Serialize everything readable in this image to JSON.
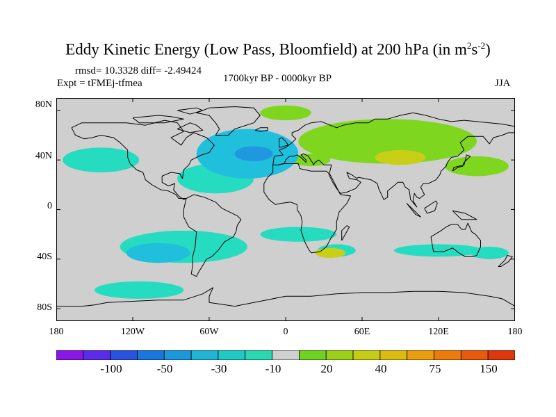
{
  "title": {
    "text": "Eddy Kinetic Energy (Low Pass, Bloomfield) at 200 hPa (in m",
    "sup1": "2",
    "mid": "s",
    "sup2": "-2",
    "end": ")"
  },
  "stats": "rmsd= 10.3328 diff= -2.49424",
  "experiment": "Expt = tFMEj-tfmea",
  "period": "1700kyr BP - 0000kyr BP",
  "season": "JJA",
  "axes": {
    "lat_labels": [
      "80N",
      "40N",
      "0",
      "40S",
      "80S"
    ],
    "lat_values": [
      80,
      40,
      0,
      -40,
      -80
    ],
    "lon_labels": [
      "180",
      "120W",
      "60W",
      "0",
      "60E",
      "120E",
      "180"
    ],
    "lon_values": [
      -180,
      -120,
      -60,
      0,
      60,
      120,
      180
    ]
  },
  "colorbar": {
    "labels": [
      "-100",
      "-50",
      "-30",
      "-10",
      "20",
      "40",
      "75",
      "150"
    ],
    "colors": [
      "#8a17e6",
      "#5a2be8",
      "#2a52e0",
      "#1876dc",
      "#1a98dc",
      "#20b4d6",
      "#21c9c4",
      "#2ad8b2",
      "#cfcfcf",
      "#6ed221",
      "#9ad018",
      "#c4cc16",
      "#dcbb10",
      "#ea9e0e",
      "#ec7a0c",
      "#e75a0c",
      "#e0360c"
    ]
  },
  "colors": {
    "background": "#cfcfcf",
    "neg_light": "#26dcc0",
    "neg_mid": "#20bfdc",
    "neg_strong": "#1f98e0",
    "pos_light": "#7ed61e",
    "pos_mid": "#a6d41a",
    "pos_strong": "#c8cf16"
  },
  "chart_data": {
    "type": "heatmap",
    "projection": "cylindrical equidistant",
    "lon_range": [
      -180,
      180
    ],
    "lat_range": [
      -90,
      90
    ],
    "field": "Eddy Kinetic Energy difference (1700kyr BP - 0000kyr BP)",
    "units": "m2 s-2",
    "anomaly_regions": [
      {
        "lon": -30,
        "lat": 45,
        "lon_radius": 40,
        "lat_radius": 20,
        "value": -30
      },
      {
        "lon": -25,
        "lat": 45,
        "lon_radius": 15,
        "lat_radius": 6,
        "value": -50
      },
      {
        "lon": -55,
        "lat": 25,
        "lon_radius": 30,
        "lat_radius": 12,
        "value": -10
      },
      {
        "lon": -145,
        "lat": 40,
        "lon_radius": 30,
        "lat_radius": 10,
        "value": -10
      },
      {
        "lon": -80,
        "lat": -30,
        "lon_radius": 50,
        "lat_radius": 13,
        "value": -10
      },
      {
        "lon": -100,
        "lat": -35,
        "lon_radius": 25,
        "lat_radius": 8,
        "value": -30
      },
      {
        "lon": -115,
        "lat": -65,
        "lon_radius": 35,
        "lat_radius": 7,
        "value": -10
      },
      {
        "lon": 10,
        "lat": -20,
        "lon_radius": 30,
        "lat_radius": 6,
        "value": -10
      },
      {
        "lon": 40,
        "lat": -33,
        "lon_radius": 15,
        "lat_radius": 5,
        "value": -10
      },
      {
        "lon": 120,
        "lat": -33,
        "lon_radius": 35,
        "lat_radius": 5,
        "value": -10
      },
      {
        "lon": 160,
        "lat": -35,
        "lon_radius": 15,
        "lat_radius": 5,
        "value": -10
      },
      {
        "lon": 80,
        "lat": 55,
        "lon_radius": 70,
        "lat_radius": 18,
        "value": 20
      },
      {
        "lon": 90,
        "lat": 42,
        "lon_radius": 20,
        "lat_radius": 6,
        "value": 40
      },
      {
        "lon": 20,
        "lat": 40,
        "lon_radius": 15,
        "lat_radius": 5,
        "value": 20
      },
      {
        "lon": 150,
        "lat": 35,
        "lon_radius": 25,
        "lat_radius": 8,
        "value": 20
      },
      {
        "lon": 0,
        "lat": 78,
        "lon_radius": 20,
        "lat_radius": 6,
        "value": 20
      },
      {
        "lon": 35,
        "lat": -35,
        "lon_radius": 12,
        "lat_radius": 4,
        "value": 40
      }
    ]
  }
}
